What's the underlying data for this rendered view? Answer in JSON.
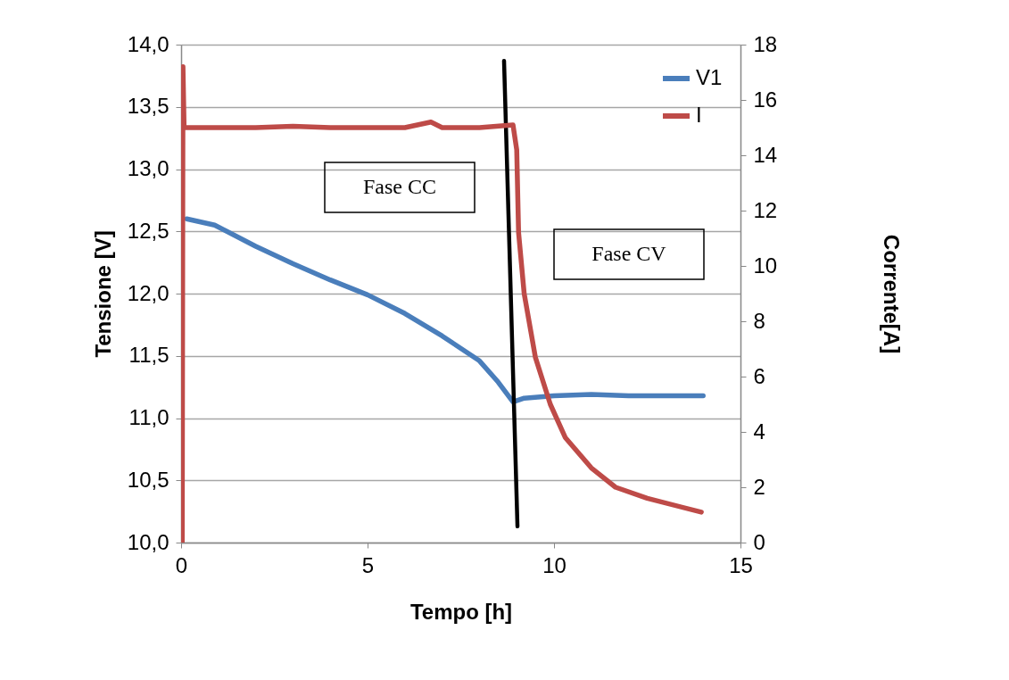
{
  "chart_data": {
    "type": "line",
    "xlabel": "Tempo [h]",
    "ylabel": "Tensione [V]",
    "y2label": "Corrente[A]",
    "xlim": [
      0,
      15
    ],
    "xticks": [
      0,
      5,
      10,
      15
    ],
    "ylim": [
      10,
      14
    ],
    "yticks": [
      {
        "value": 10,
        "label": "10,0"
      },
      {
        "value": 10.5,
        "label": "10,5"
      },
      {
        "value": 11,
        "label": "11,0"
      },
      {
        "value": 11.5,
        "label": "11,5"
      },
      {
        "value": 12,
        "label": "12,0"
      },
      {
        "value": 12.5,
        "label": "12,5"
      },
      {
        "value": 13,
        "label": "13,0"
      },
      {
        "value": 13.5,
        "label": "13,5"
      },
      {
        "value": 14,
        "label": "14,0"
      }
    ],
    "y2lim": [
      0,
      18
    ],
    "y2ticks": [
      0,
      2,
      4,
      6,
      8,
      10,
      12,
      14,
      16,
      18
    ],
    "grid": "y",
    "legend": "top right",
    "annotations": [
      "Fase CC",
      "Fase CV"
    ],
    "series": [
      {
        "name": "V1",
        "color": "#4a7ebb",
        "x": [
          0.15,
          0.9,
          2,
          3,
          4,
          5,
          6,
          7,
          8,
          8.5,
          8.9,
          9.2,
          10,
          11,
          12,
          13,
          14
        ],
        "values": [
          12.6,
          12.55,
          12.38,
          12.24,
          12.11,
          11.99,
          11.84,
          11.66,
          11.46,
          11.29,
          11.13,
          11.16,
          11.18,
          11.19,
          11.18,
          11.18,
          11.18
        ]
      },
      {
        "name": "I",
        "color": "#be4b48",
        "axis": "y2",
        "x": [
          0.03,
          0.05,
          0.08,
          1,
          2,
          3,
          4,
          5,
          6,
          6.7,
          7,
          8,
          8.9,
          9.0,
          9.05,
          9.2,
          9.5,
          9.9,
          10.3,
          11,
          11.65,
          12.5,
          13.95
        ],
        "values": [
          0,
          17.2,
          15,
          15,
          15,
          15.05,
          15,
          15,
          15,
          15.2,
          15,
          15,
          15.1,
          14.2,
          11.2,
          9,
          6.7,
          5,
          3.8,
          2.7,
          2,
          1.6,
          1.1
        ]
      },
      {
        "type": "line",
        "color": "#000000",
        "x": [
          8.66,
          9.02
        ],
        "values": [
          13.87,
          10.13
        ]
      }
    ]
  }
}
